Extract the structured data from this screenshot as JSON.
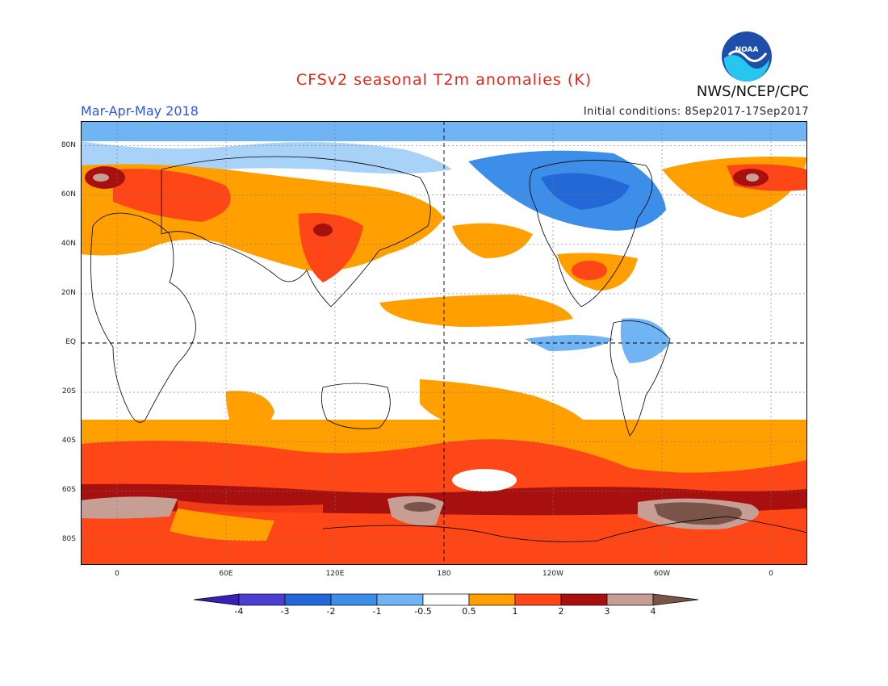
{
  "header": {
    "title": "CFSv2 seasonal T2m anomalies (K)",
    "agency": "NWS/NCEP/CPC",
    "season": "Mar-Apr-May 2018",
    "initial_conditions": "Initial conditions: 8Sep2017-17Sep2017",
    "logo_text": "NOAA"
  },
  "map": {
    "lon_range": [
      -20,
      380
    ],
    "lat_range": [
      -90,
      90
    ],
    "grid_lines": "dotted",
    "y_tick_labels": [
      {
        "lat": 80,
        "label": "80N"
      },
      {
        "lat": 60,
        "label": "60N"
      },
      {
        "lat": 40,
        "label": "40N"
      },
      {
        "lat": 20,
        "label": "20N"
      },
      {
        "lat": 0,
        "label": "EQ"
      },
      {
        "lat": -20,
        "label": "20S"
      },
      {
        "lat": -40,
        "label": "40S"
      },
      {
        "lat": -60,
        "label": "60S"
      },
      {
        "lat": -80,
        "label": "80S"
      }
    ],
    "x_tick_labels": [
      {
        "lon": 0,
        "label": "0"
      },
      {
        "lon": 60,
        "label": "60E"
      },
      {
        "lon": 120,
        "label": "120E"
      },
      {
        "lon": 180,
        "label": "180"
      },
      {
        "lon": 240,
        "label": "120W"
      },
      {
        "lon": 300,
        "label": "60W"
      },
      {
        "lon": 360,
        "label": "0"
      }
    ]
  },
  "legend": {
    "colors": [
      "#3a1fb4",
      "#4a3fd0",
      "#2468d8",
      "#3c8ee8",
      "#70b4f4",
      "#ffffff",
      "#ff9f00",
      "#ff4616",
      "#a80f0f",
      "#c79e93",
      "#7a5448"
    ],
    "labels": [
      "-4",
      "-3",
      "-2",
      "-1",
      "-0.5",
      "0.5",
      "1",
      "2",
      "3",
      "4"
    ]
  }
}
